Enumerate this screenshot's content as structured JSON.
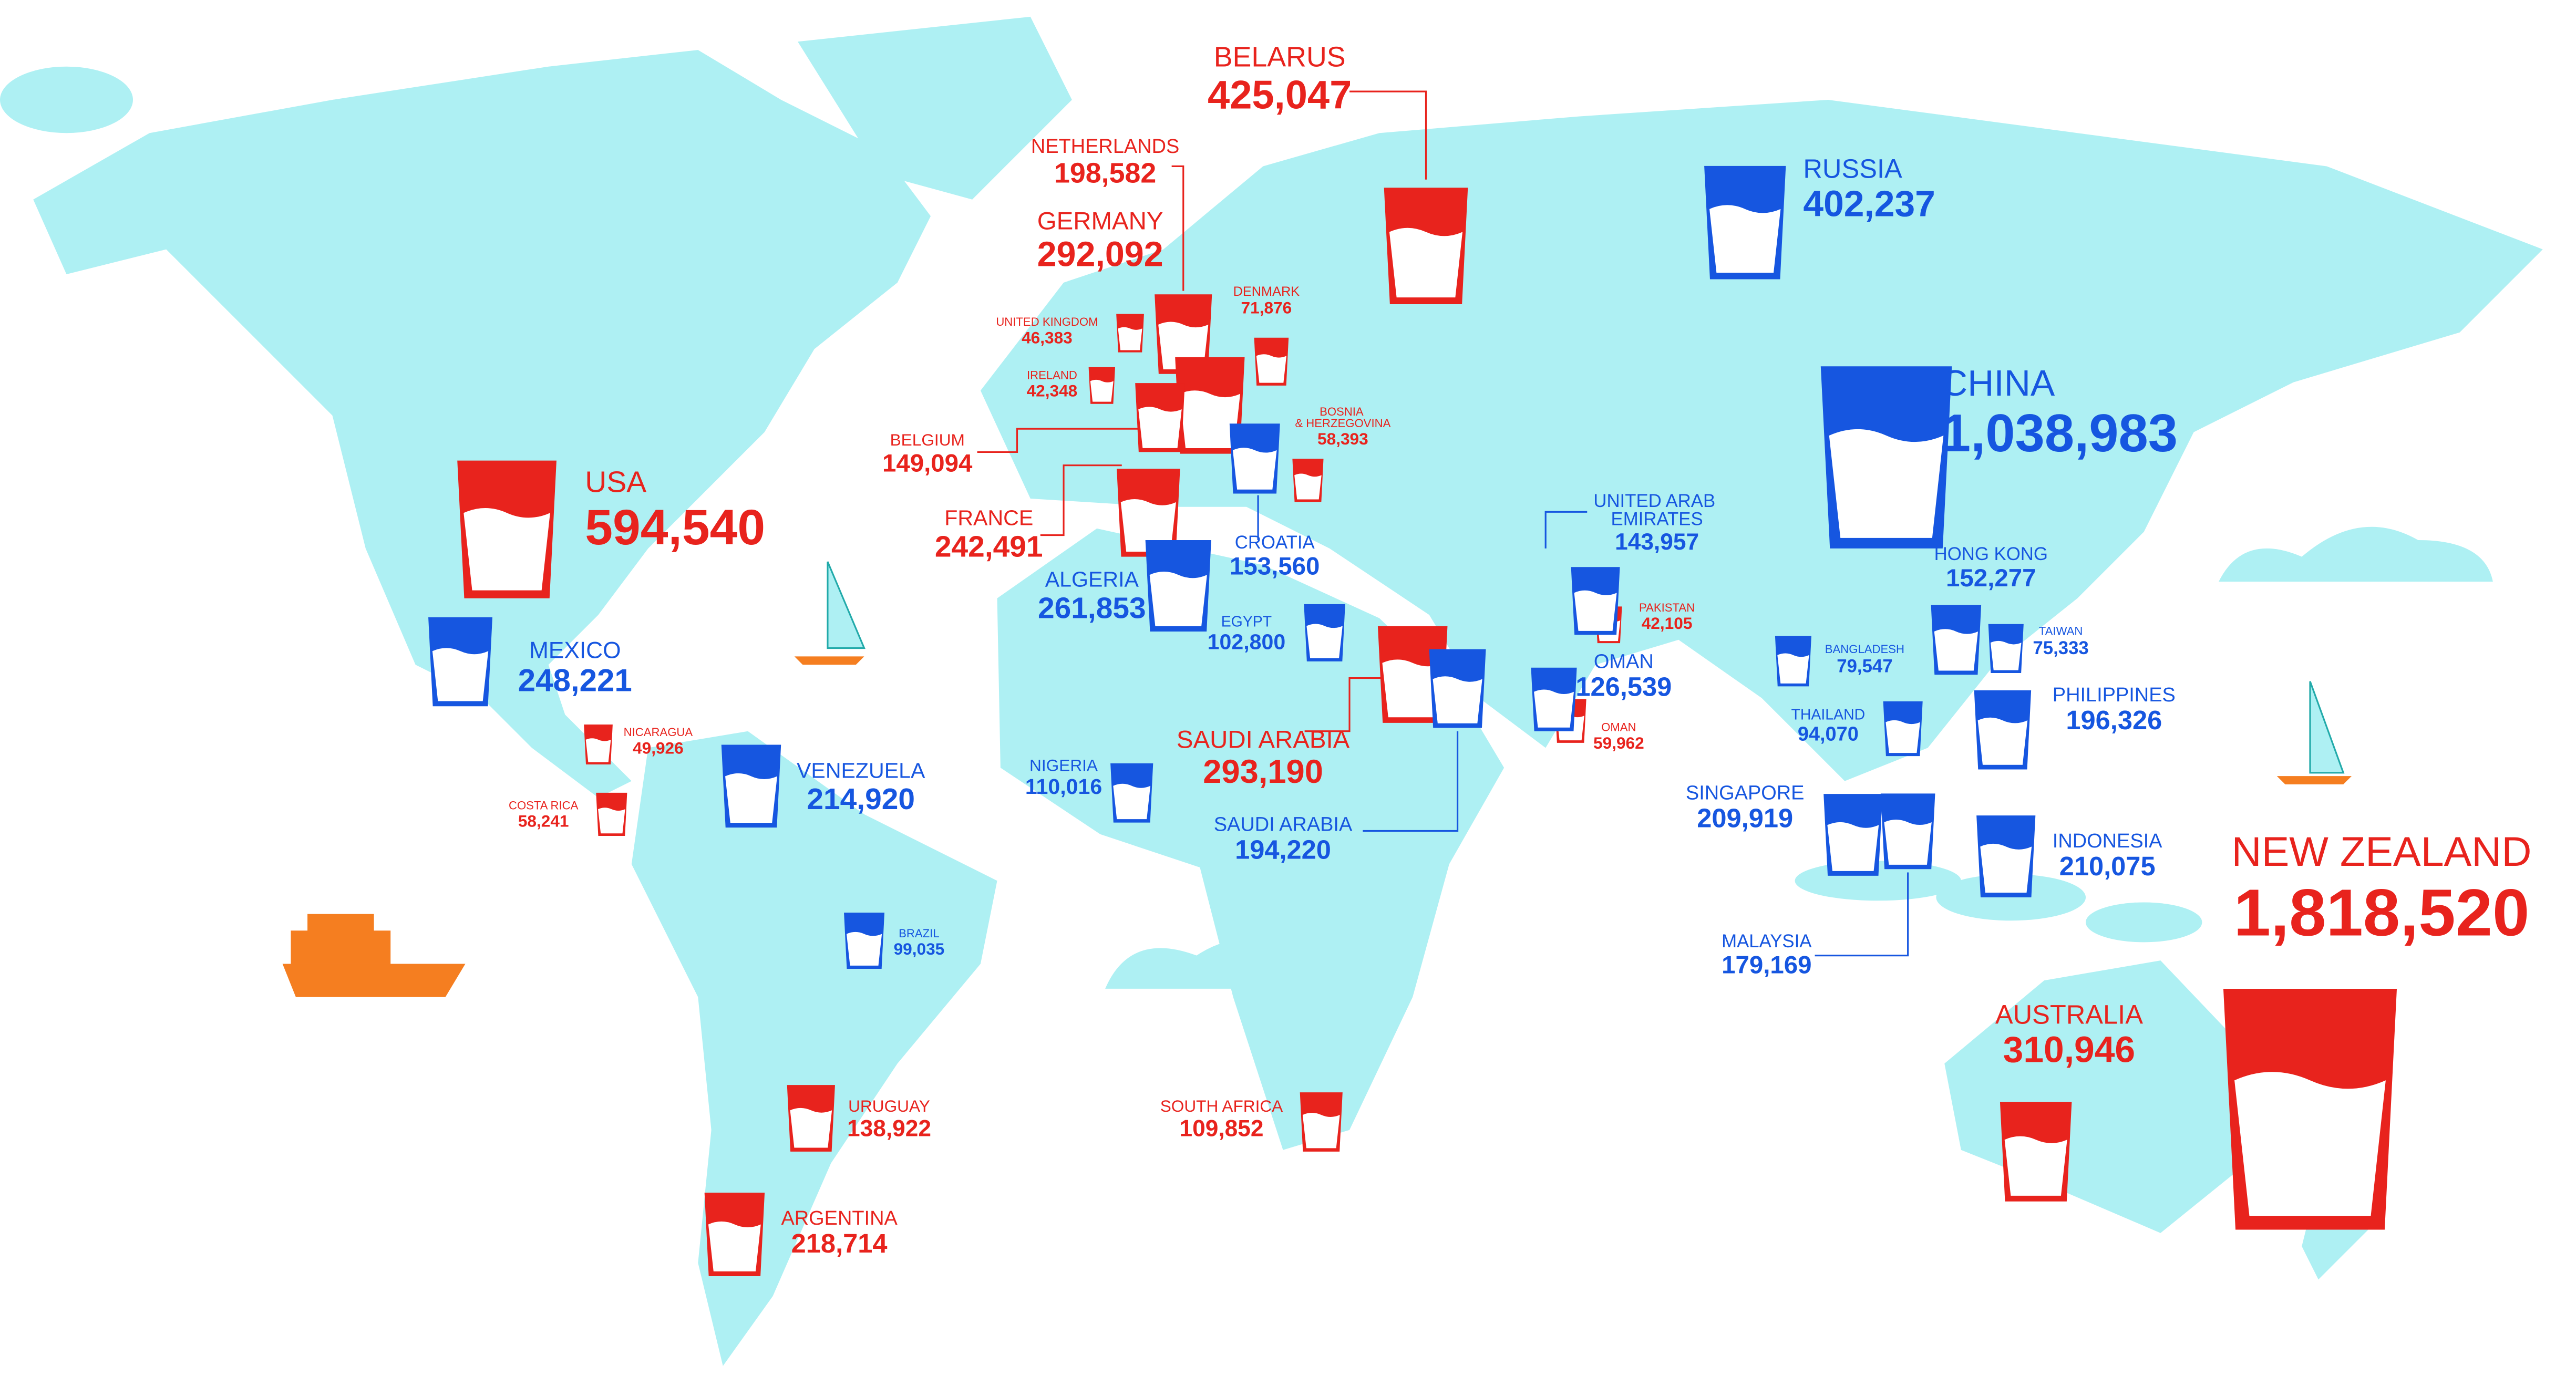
{
  "chart_data": {
    "type": "map",
    "categories": [
      "BELARUS",
      "NETHERLANDS",
      "GERMANY",
      "UNITED KINGDOM",
      "DENMARK",
      "IRELAND",
      "BELGIUM",
      "BOSNIA & HERZEGOVINA",
      "FRANCE",
      "USA",
      "SAUDI ARABIA",
      "PAKISTAN",
      "OMAN",
      "NICARAGUA",
      "COSTA RICA",
      "URUGUAY",
      "ARGENTINA",
      "SOUTH AFRICA",
      "AUSTRALIA",
      "NEW ZEALAND",
      "RUSSIA",
      "CHINA",
      "UNITED ARAB EMIRATES",
      "MEXICO",
      "VENEZUELA",
      "CROATIA",
      "ALGERIA",
      "EGYPT",
      "NIGERIA",
      "SAUDI ARABIA",
      "OMAN",
      "BRAZIL",
      "HONG KONG",
      "TAIWAN",
      "BANGLADESH",
      "THAILAND",
      "PHILIPPINES",
      "SINGAPORE",
      "MALAYSIA",
      "INDONESIA"
    ],
    "values": [
      425047,
      198582,
      292092,
      46383,
      71876,
      42348,
      149094,
      58393,
      242491,
      594540,
      293190,
      42105,
      59962,
      49926,
      58241,
      138922,
      218714,
      109852,
      310946,
      1818520,
      402237,
      1038983,
      143957,
      248221,
      214920,
      153560,
      261853,
      102800,
      110016,
      194220,
      126539,
      99035,
      152277,
      75333,
      79547,
      94070,
      196326,
      209919,
      179169,
      210075
    ],
    "value_labels": [
      "425,047",
      "198,582",
      "292,092",
      "46,383",
      "71,876",
      "42,348",
      "149,094",
      "58,393",
      "242,491",
      "594,540",
      "293,190",
      "42,105",
      "59,962",
      "49,926",
      "58,241",
      "138,922",
      "218,714",
      "109,852",
      "310,946",
      "1,818,520",
      "402,237",
      "1,038,983",
      "143,957",
      "248,221",
      "214,920",
      "153,560",
      "261,853",
      "102,800",
      "110,016",
      "194,220",
      "126,539",
      "99,035",
      "152,277",
      "75,333",
      "79,547",
      "94,070",
      "196,326",
      "209,919",
      "179,169",
      "210,075"
    ],
    "colors": [
      "#e8231d",
      "#e8231d",
      "#e8231d",
      "#e8231d",
      "#e8231d",
      "#e8231d",
      "#e8231d",
      "#e8231d",
      "#e8231d",
      "#e8231d",
      "#e8231d",
      "#e8231d",
      "#e8231d",
      "#e8231d",
      "#e8231d",
      "#e8231d",
      "#e8231d",
      "#e8231d",
      "#e8231d",
      "#e8231d",
      "#1656e0",
      "#1656e0",
      "#1656e0",
      "#1656e0",
      "#1656e0",
      "#1656e0",
      "#1656e0",
      "#1656e0",
      "#1656e0",
      "#1656e0",
      "#1656e0",
      "#1656e0",
      "#1656e0",
      "#1656e0",
      "#1656e0",
      "#1656e0",
      "#1656e0",
      "#1656e0",
      "#1656e0",
      "#1656e0"
    ]
  }
}
